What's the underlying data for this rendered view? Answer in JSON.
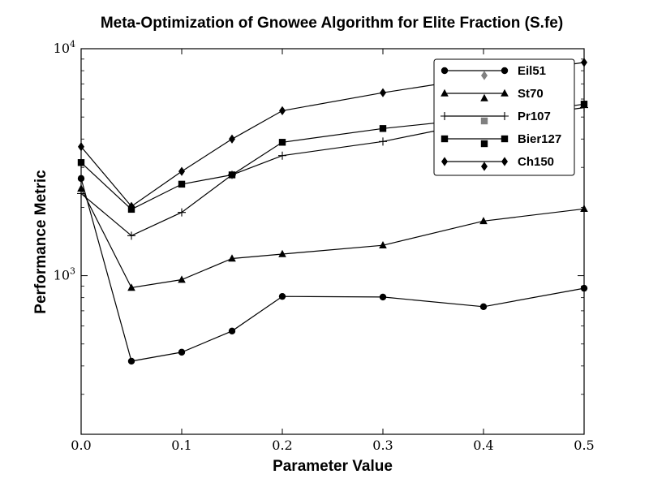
{
  "chart_data": {
    "type": "line",
    "title": "Meta-Optimization of Gnowee Algorithm for Elite Fraction (S.fe)",
    "xlabel": "Parameter Value",
    "ylabel": "Performance Metric",
    "yscale": "log",
    "xlim": [
      0.0,
      0.5
    ],
    "ylim": [
      200,
      10000
    ],
    "x_ticks": [
      "0.0",
      "0.1",
      "0.2",
      "0.3",
      "0.4",
      "0.5"
    ],
    "y_ticks": [
      {
        "base": "10",
        "exp": "3",
        "value": 1000
      },
      {
        "base": "10",
        "exp": "4",
        "value": 10000
      }
    ],
    "legend_position": "top-right",
    "grid": false,
    "x": [
      0.0,
      0.05,
      0.1,
      0.15,
      0.2,
      0.3,
      0.4,
      0.5
    ],
    "series": [
      {
        "name": "Eil51",
        "marker": "circle",
        "legend_marker_color": "#808080",
        "legend_marker_shape": "diamond",
        "values": [
          2680,
          420,
          460,
          570,
          810,
          805,
          730,
          880
        ]
      },
      {
        "name": "St70",
        "marker": "triangle",
        "legend_marker_color": "#000000",
        "legend_marker_shape": "triangle",
        "values": [
          2420,
          885,
          960,
          1190,
          1245,
          1360,
          1740,
          1970
        ]
      },
      {
        "name": "Pr107",
        "marker": "plus",
        "legend_marker_color": "#808080",
        "legend_marker_shape": "square",
        "values": [
          2300,
          1500,
          1900,
          2780,
          3380,
          3900,
          4800,
          5500
        ]
      },
      {
        "name": "Bier127",
        "marker": "square",
        "legend_marker_color": "#000000",
        "legend_marker_shape": "square",
        "values": [
          3150,
          1960,
          2530,
          2780,
          3870,
          4450,
          4950,
          5700
        ]
      },
      {
        "name": "Ch150",
        "marker": "diamond",
        "legend_marker_color": "#000000",
        "legend_marker_shape": "diamond",
        "values": [
          3700,
          2020,
          2880,
          4000,
          5330,
          6400,
          7500,
          8700
        ]
      }
    ]
  }
}
